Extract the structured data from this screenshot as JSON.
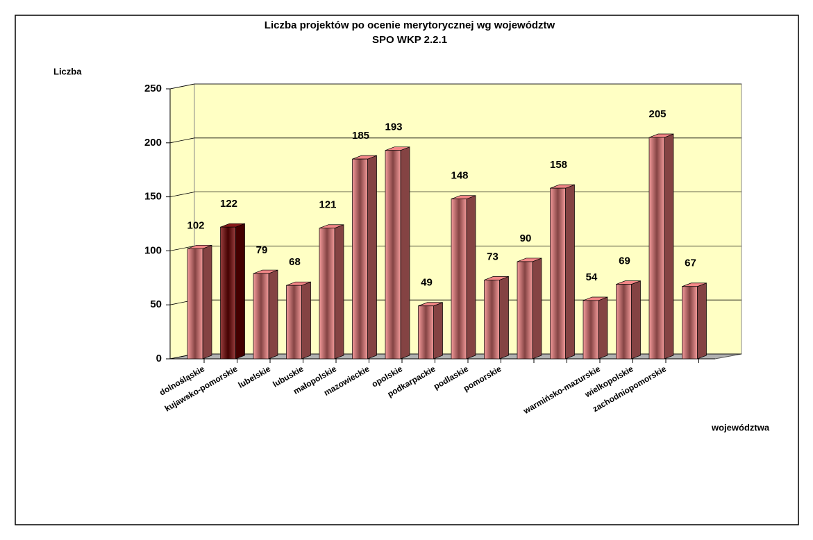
{
  "chart_data": {
    "type": "bar3d",
    "title": "Liczba projektów po ocenie merytorycznej wg województw",
    "subtitle": "SPO WKP 2.2.1",
    "y_label": "Liczba",
    "x_label": "województwa",
    "categories": [
      "dolnośląskie",
      "kujawsko-pomorskie",
      "lubelskie",
      "lubuskie",
      "małopolskie",
      "mazowieckie",
      "opolskie",
      "podkarpackie",
      "podlaskie",
      "pomorskie",
      null,
      null,
      "warmińsko-mazurskie",
      "wielkopolskie",
      "zachodniopomorskie",
      null
    ],
    "values": [
      102,
      122,
      79,
      68,
      121,
      185,
      193,
      49,
      148,
      73,
      90,
      158,
      54,
      69,
      205,
      67
    ],
    "colors": [
      "#f07a7a",
      "#7a0000",
      "#f07a7a",
      "#f07a7a",
      "#f07a7a",
      "#f07a7a",
      "#f07a7a",
      "#f07a7a",
      "#f07a7a",
      "#f07a7a",
      "#f07a7a",
      "#f07a7a",
      "#f07a7a",
      "#f07a7a",
      "#f07a7a",
      "#f07a7a"
    ],
    "wall_color": "#ffffc4",
    "ylim": [
      0,
      250
    ],
    "yticks": [
      0,
      50,
      100,
      150,
      200,
      250
    ],
    "grid": true
  }
}
